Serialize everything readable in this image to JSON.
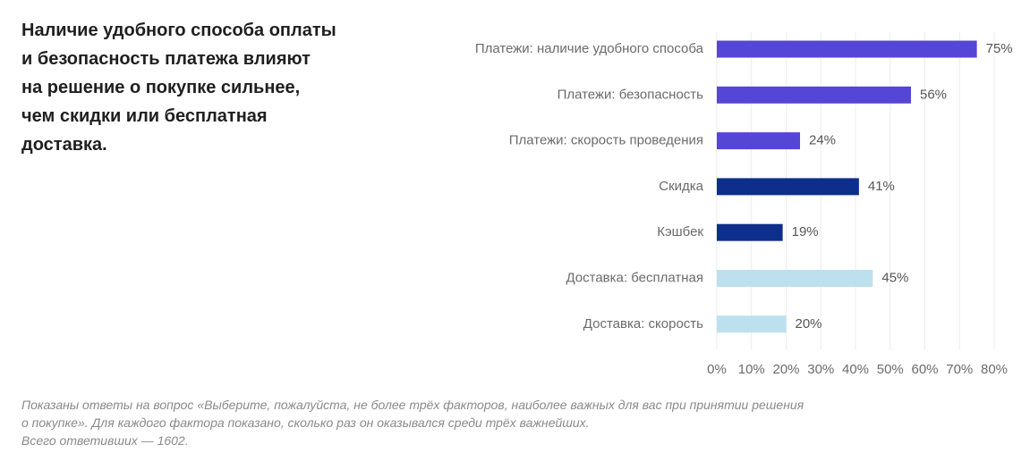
{
  "headline": [
    "Наличие удобного способа оплаты",
    "и безопасность платежа влияют",
    "на решение о покупке сильнее,",
    "чем скидки или бесплатная",
    "доставка."
  ],
  "chart_data": {
    "type": "bar",
    "orientation": "horizontal",
    "categories": [
      "Платежи: наличие удобного способа",
      "Платежи: безопасность",
      "Платежи: скорость проведения",
      "Скидка",
      "Кэшбек",
      "Доставка: бесплатная",
      "Доставка: скорость"
    ],
    "values": [
      75,
      56,
      24,
      41,
      19,
      45,
      20
    ],
    "value_labels": [
      "75%",
      "56%",
      "24%",
      "41%",
      "19%",
      "45%",
      "20%"
    ],
    "colors": [
      "#5646d6",
      "#5646d6",
      "#5646d6",
      "#0d2e8a",
      "#0d2e8a",
      "#bde0ee",
      "#bde0ee"
    ],
    "xlim": [
      0,
      80
    ],
    "xticks": [
      0,
      10,
      20,
      30,
      40,
      50,
      60,
      70,
      80
    ],
    "xtick_labels": [
      "0%",
      "10%",
      "20%",
      "30%",
      "40%",
      "50%",
      "60%",
      "70%",
      "80%"
    ],
    "grid": true,
    "grid_color": "#ececec",
    "legend": "none"
  },
  "footnote": [
    "Показаны ответы на вопрос «Выберите, пожалуйста, не более трёх факторов, наиболее важных для вас при принятии решения",
    "о покупке». Для каждого фактора показано, сколько раз он оказывался среди трёх важнейших.",
    "Всего ответивших — 1602."
  ]
}
